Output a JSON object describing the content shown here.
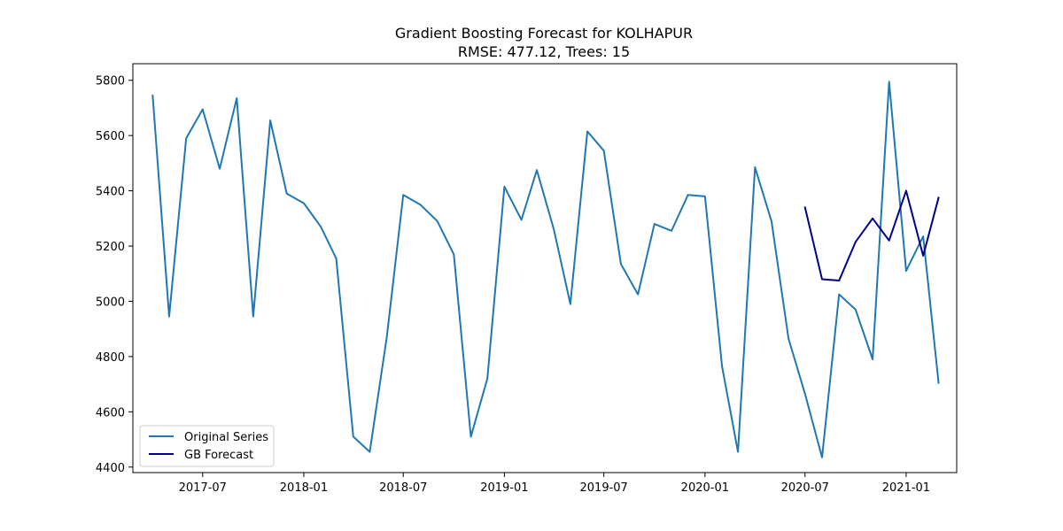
{
  "chart_data": {
    "type": "line",
    "title": "Gradient Boosting Forecast for KOLHAPUR",
    "subtitle": "RMSE: 477.12, Trees: 15",
    "xlabel": "",
    "ylabel": "",
    "ylim": [
      4380,
      5860
    ],
    "xlim": [
      "2017-02-24",
      "2021-04-03"
    ],
    "x_ticks": [
      {
        "date": "2017-07-01",
        "label": "2017-07"
      },
      {
        "date": "2018-01-01",
        "label": "2018-01"
      },
      {
        "date": "2018-07-01",
        "label": "2018-07"
      },
      {
        "date": "2019-01-01",
        "label": "2019-01"
      },
      {
        "date": "2019-07-01",
        "label": "2019-07"
      },
      {
        "date": "2020-01-01",
        "label": "2020-01"
      },
      {
        "date": "2020-07-01",
        "label": "2020-07"
      },
      {
        "date": "2021-01-01",
        "label": "2021-01"
      }
    ],
    "y_ticks": [
      4400,
      4600,
      4800,
      5000,
      5200,
      5400,
      5600,
      5800
    ],
    "grid": false,
    "legend_position": "lower-left",
    "series": [
      {
        "name": "Original Series",
        "color": "#1f77b4",
        "x": [
          "2017-04-01",
          "2017-05-01",
          "2017-06-01",
          "2017-07-01",
          "2017-08-01",
          "2017-09-01",
          "2017-10-01",
          "2017-11-01",
          "2017-12-01",
          "2018-01-01",
          "2018-02-01",
          "2018-03-01",
          "2018-04-01",
          "2018-05-01",
          "2018-06-01",
          "2018-07-01",
          "2018-08-01",
          "2018-09-01",
          "2018-10-01",
          "2018-11-01",
          "2018-12-01",
          "2019-01-01",
          "2019-02-01",
          "2019-03-01",
          "2019-04-01",
          "2019-05-01",
          "2019-06-01",
          "2019-07-01",
          "2019-08-01",
          "2019-09-01",
          "2019-10-01",
          "2019-11-01",
          "2019-12-01",
          "2020-01-01",
          "2020-02-01",
          "2020-03-01",
          "2020-04-01",
          "2020-05-01",
          "2020-06-01",
          "2020-07-01",
          "2020-08-01",
          "2020-09-01",
          "2020-10-01",
          "2020-11-01",
          "2020-12-01",
          "2021-01-01",
          "2021-02-01",
          "2021-03-01"
        ],
        "values": [
          5745,
          4945,
          5590,
          5695,
          5480,
          5735,
          4945,
          5655,
          5390,
          5355,
          5270,
          5155,
          4510,
          4455,
          4870,
          5385,
          5350,
          5290,
          5170,
          4510,
          4720,
          5415,
          5295,
          5475,
          5260,
          4990,
          5615,
          5545,
          5135,
          5025,
          5280,
          5255,
          5385,
          5380,
          4765,
          4455,
          5485,
          5290,
          4865,
          4665,
          4435,
          5025,
          4970,
          4790,
          5795,
          5110,
          5235,
          4705
        ]
      },
      {
        "name": "GB Forecast",
        "color": "#00008b",
        "x": [
          "2020-07-01",
          "2020-08-01",
          "2020-09-01",
          "2020-10-01",
          "2020-11-01",
          "2020-12-01",
          "2021-01-01",
          "2021-02-01",
          "2021-03-01"
        ],
        "values": [
          5340,
          5080,
          5075,
          5215,
          5300,
          5220,
          5400,
          5165,
          5375
        ]
      }
    ]
  }
}
